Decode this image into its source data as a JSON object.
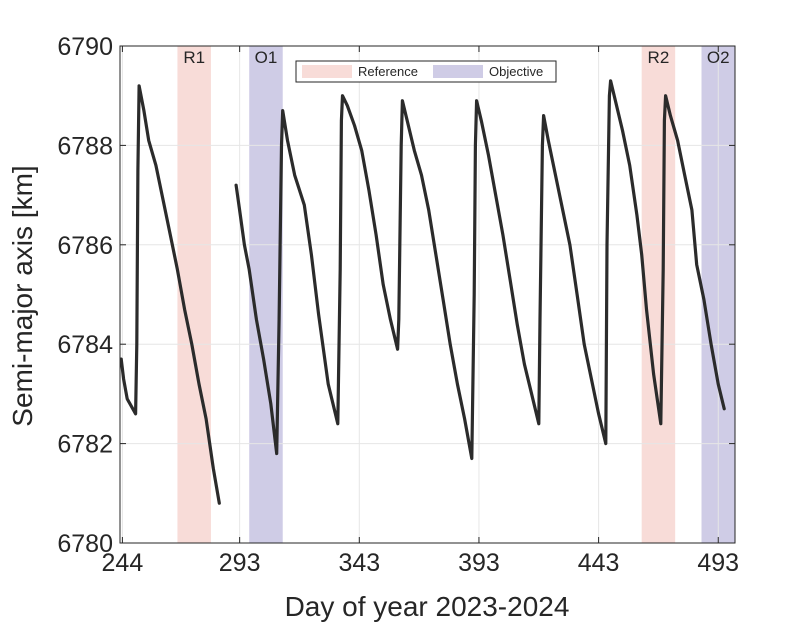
{
  "chart_data": {
    "type": "line",
    "title": "",
    "xlabel": "Day of year 2023-2024",
    "ylabel": "Semi-major axis [km]",
    "xlim": [
      243,
      500
    ],
    "ylim": [
      6780,
      6790
    ],
    "xticks": [
      244,
      293,
      343,
      393,
      443,
      493
    ],
    "yticks": [
      6780,
      6782,
      6784,
      6786,
      6788,
      6790
    ],
    "grid": true,
    "colors": {
      "line": "#2b2b2b",
      "reference": "#f8dcd8",
      "objective": "#cfcce6"
    },
    "legend": {
      "placement": "top-center",
      "entries": [
        {
          "label": "Reference",
          "color": "#f8dcd8"
        },
        {
          "label": "Objective",
          "color": "#cfcce6"
        }
      ]
    },
    "bands": [
      {
        "label": "R1",
        "kind": "reference",
        "x0": 267,
        "x1": 281
      },
      {
        "label": "O1",
        "kind": "objective",
        "x0": 297,
        "x1": 311
      },
      {
        "label": "R2",
        "kind": "reference",
        "x0": 461,
        "x1": 475
      },
      {
        "label": "O2",
        "kind": "objective",
        "x0": 486,
        "x1": 500
      }
    ],
    "series": [
      {
        "values": [
          [
            243.5,
            6783.7
          ],
          [
            244.5,
            6783.3
          ],
          [
            246,
            6782.9
          ],
          [
            249.5,
            6782.6
          ],
          [
            250,
            6784.0
          ],
          [
            250.5,
            6787.5
          ],
          [
            251,
            6789.2
          ],
          [
            253,
            6788.7
          ],
          [
            255,
            6788.1
          ],
          [
            258,
            6787.6
          ],
          [
            261,
            6786.9
          ],
          [
            264,
            6786.2
          ],
          [
            267,
            6785.5
          ],
          [
            270,
            6784.7
          ],
          [
            273,
            6784.0
          ],
          [
            276,
            6783.2
          ],
          [
            279,
            6782.5
          ],
          [
            282,
            6781.5
          ],
          [
            284.5,
            6780.8
          ]
        ]
      },
      {
        "values": [
          [
            291.5,
            6787.2
          ],
          [
            293,
            6786.7
          ],
          [
            295,
            6786.0
          ],
          [
            297,
            6785.5
          ],
          [
            300,
            6784.5
          ],
          [
            303,
            6783.7
          ],
          [
            306,
            6782.8
          ],
          [
            308.5,
            6781.8
          ],
          [
            309.5,
            6784.5
          ],
          [
            310.5,
            6788.0
          ],
          [
            311,
            6788.7
          ],
          [
            313,
            6788.1
          ],
          [
            316,
            6787.4
          ],
          [
            320,
            6786.8
          ],
          [
            323,
            6785.8
          ],
          [
            326,
            6784.6
          ],
          [
            330,
            6783.2
          ],
          [
            334,
            6782.4
          ],
          [
            335,
            6785.5
          ],
          [
            335.5,
            6788.5
          ],
          [
            336,
            6789.0
          ],
          [
            338,
            6788.8
          ],
          [
            341,
            6788.4
          ],
          [
            344,
            6787.9
          ],
          [
            347,
            6787.1
          ],
          [
            350,
            6786.2
          ],
          [
            353,
            6785.2
          ],
          [
            356,
            6784.5
          ],
          [
            359,
            6783.9
          ],
          [
            359.5,
            6784.5
          ],
          [
            360.5,
            6788.0
          ],
          [
            361,
            6788.9
          ],
          [
            363,
            6788.5
          ],
          [
            366,
            6787.9
          ],
          [
            369,
            6787.4
          ],
          [
            372,
            6786.7
          ],
          [
            375,
            6785.8
          ],
          [
            378,
            6784.9
          ],
          [
            381,
            6784.0
          ],
          [
            384,
            6783.2
          ],
          [
            387,
            6782.5
          ],
          [
            390,
            6781.7
          ],
          [
            391,
            6785.0
          ],
          [
            391.5,
            6788.0
          ],
          [
            392,
            6788.9
          ],
          [
            394,
            6788.5
          ],
          [
            397,
            6787.8
          ],
          [
            400,
            6787.0
          ],
          [
            403,
            6786.2
          ],
          [
            406,
            6785.3
          ],
          [
            409,
            6784.4
          ],
          [
            412,
            6783.6
          ],
          [
            415,
            6783.0
          ],
          [
            418,
            6782.4
          ],
          [
            418.5,
            6784.5
          ],
          [
            419.5,
            6788.0
          ],
          [
            420,
            6788.6
          ],
          [
            422,
            6788.1
          ],
          [
            425,
            6787.4
          ],
          [
            428,
            6786.7
          ],
          [
            431,
            6786.0
          ],
          [
            434,
            6785.0
          ],
          [
            437,
            6784.0
          ],
          [
            440,
            6783.3
          ],
          [
            443,
            6782.6
          ],
          [
            446,
            6782.0
          ],
          [
            446.5,
            6786.0
          ],
          [
            447.5,
            6789.0
          ],
          [
            448,
            6789.3
          ],
          [
            450,
            6788.9
          ],
          [
            453,
            6788.3
          ],
          [
            456,
            6787.6
          ],
          [
            459,
            6786.6
          ],
          [
            461,
            6785.8
          ],
          [
            463,
            6784.7
          ],
          [
            466,
            6783.4
          ],
          [
            469,
            6782.4
          ],
          [
            470,
            6785.5
          ],
          [
            470.5,
            6788.5
          ],
          [
            471,
            6789.0
          ],
          [
            473,
            6788.6
          ],
          [
            476,
            6788.1
          ],
          [
            479,
            6787.4
          ],
          [
            482,
            6786.7
          ],
          [
            484,
            6785.6
          ],
          [
            487,
            6784.9
          ],
          [
            490,
            6784.0
          ],
          [
            493,
            6783.2
          ],
          [
            495.5,
            6782.7
          ]
        ]
      }
    ]
  }
}
